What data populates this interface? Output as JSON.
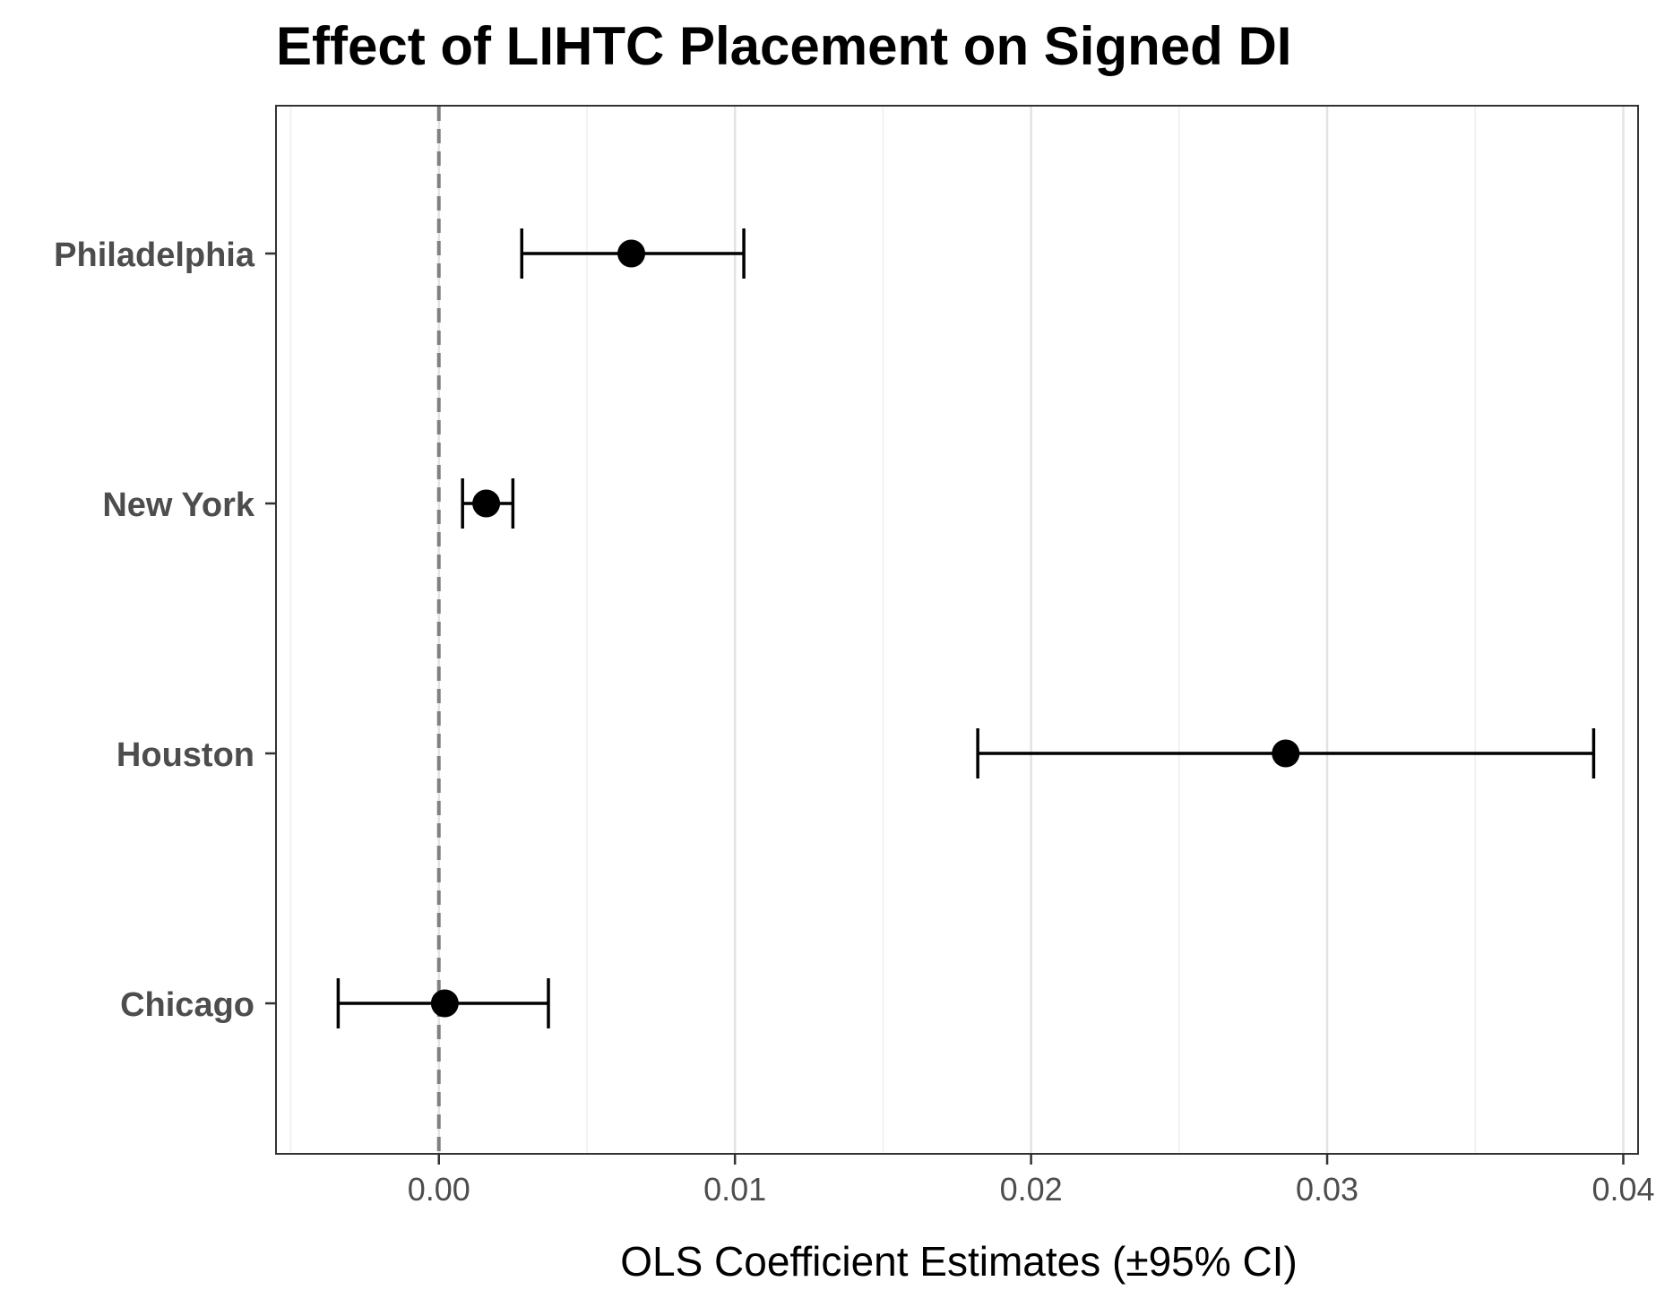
{
  "chart_data": {
    "type": "scatter",
    "variant": "coefficient-plot-with-error-bars",
    "title": "Effect of LIHTC Placement on Signed DI",
    "xlabel": "OLS Coefficient Estimates (±95% CI)",
    "ylabel": "",
    "categories": [
      "Philadelphia",
      "New York",
      "Houston",
      "Chicago"
    ],
    "estimates": [
      0.0065,
      0.0016,
      0.0286,
      0.0002
    ],
    "ci_lower": [
      0.0028,
      0.0008,
      0.0182,
      -0.0034
    ],
    "ci_upper": [
      0.0103,
      0.0025,
      0.039,
      0.0037
    ],
    "xlim": [
      -0.0055,
      0.0405
    ],
    "x_ticks": [
      0.0,
      0.01,
      0.02,
      0.03,
      0.04
    ],
    "x_tick_labels": [
      "0.00",
      "0.01",
      "0.02",
      "0.03",
      "0.04"
    ],
    "reference_line": {
      "x": 0,
      "style": "dashed",
      "color": "#808080"
    },
    "grid": {
      "vertical_major": true,
      "vertical_minor": true,
      "horizontal": false
    },
    "colors": {
      "point": "#000000",
      "errorbar": "#000000",
      "panel_border": "#333333",
      "grid_major": "#e3e3e3",
      "grid_minor": "#efefef"
    }
  }
}
